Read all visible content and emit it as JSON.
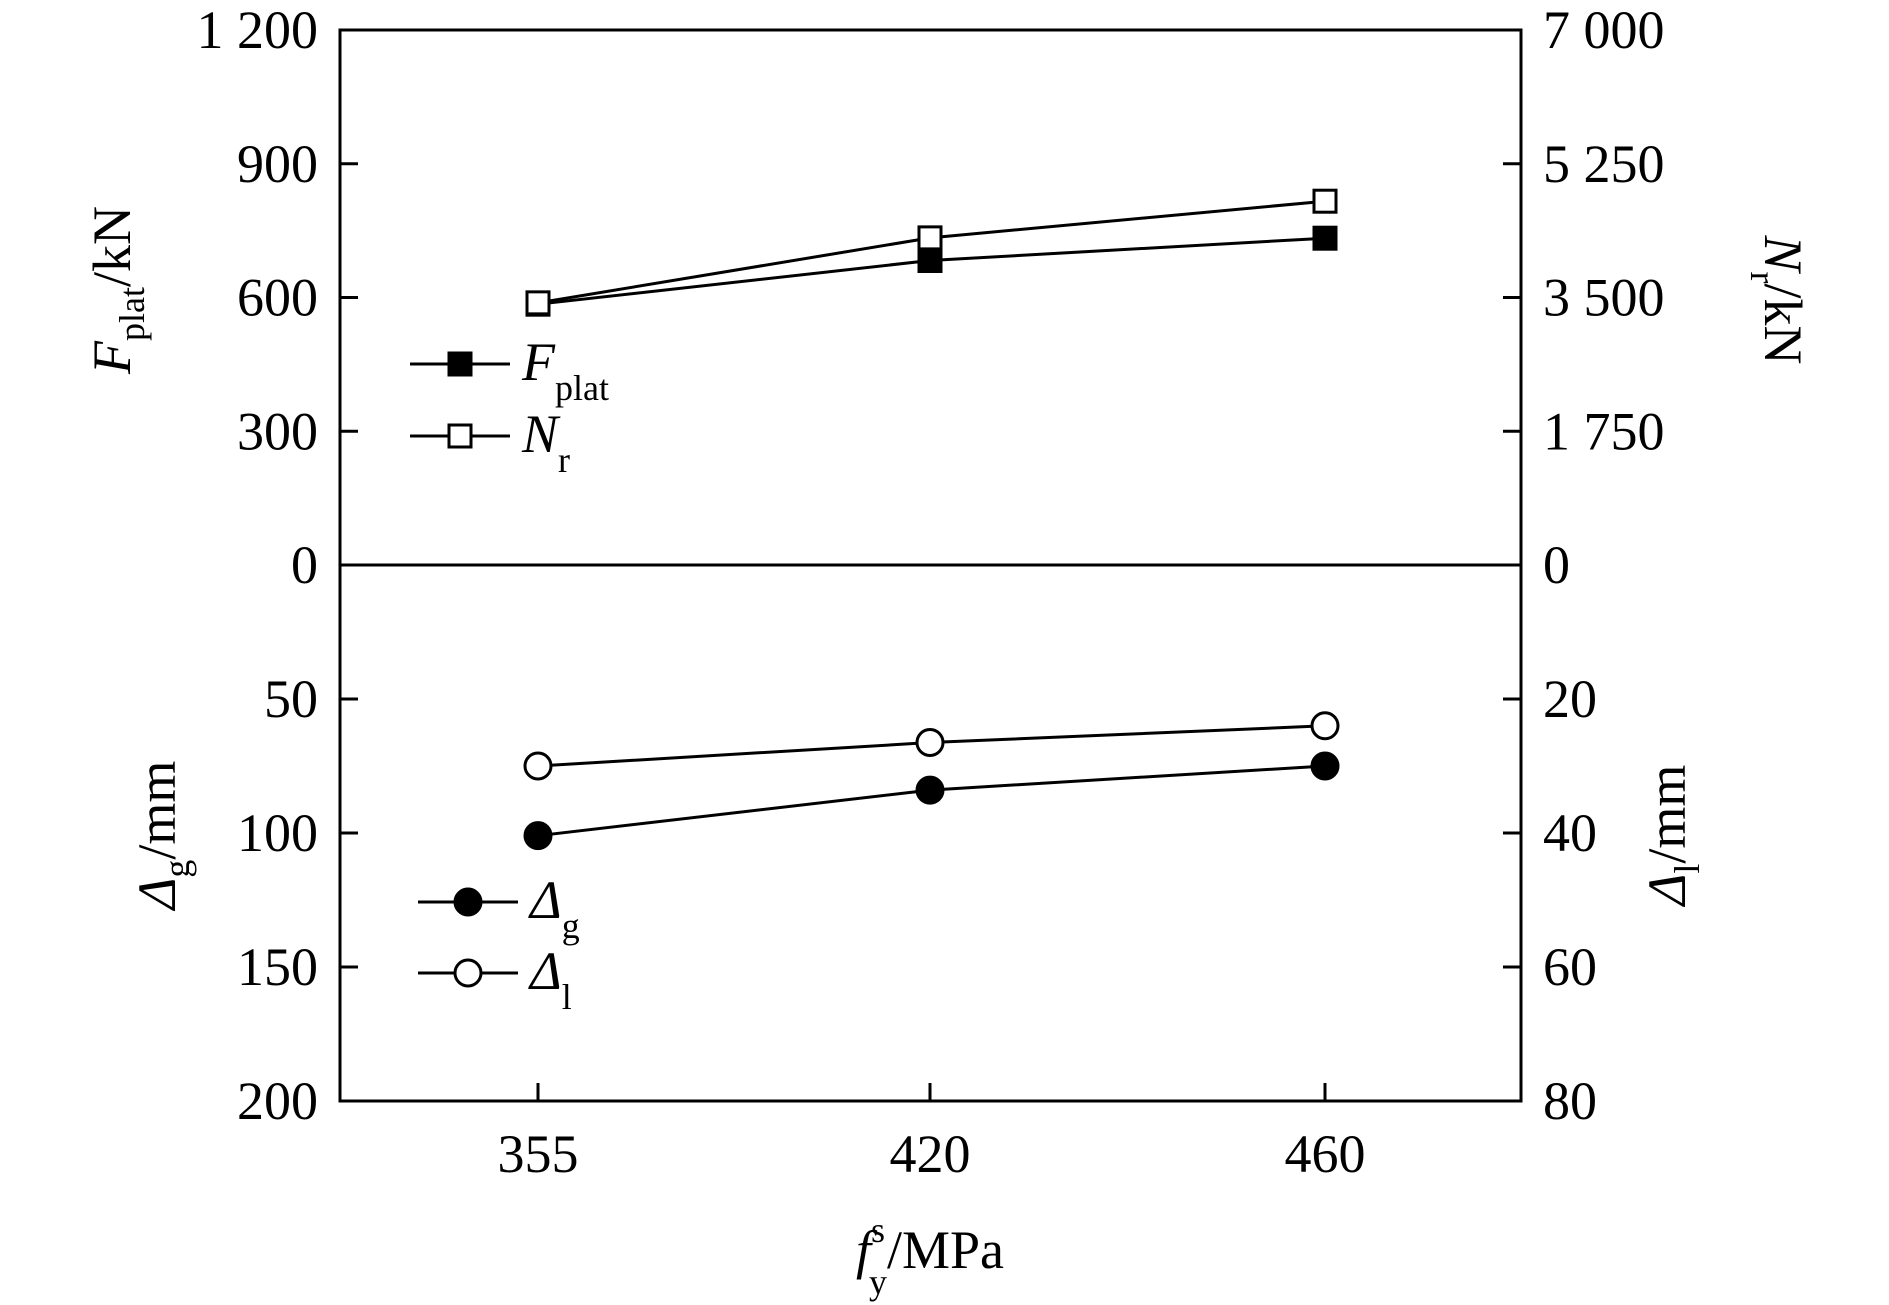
{
  "chart_data": [
    {
      "panel": "top",
      "type": "line",
      "x": [
        355,
        420,
        460
      ],
      "x_positions": "categorical",
      "xtick_labels": [
        "355",
        "420",
        "460"
      ],
      "left_axis": {
        "label_main": "F",
        "label_sub": "plat",
        "label_unit": "/kN",
        "ylim": [
          0,
          1200
        ],
        "ticks": [
          0,
          300,
          600,
          900,
          1200
        ],
        "tick_labels": [
          "0",
          "300",
          "600",
          "900",
          "1 200"
        ]
      },
      "right_axis": {
        "label_main": "N",
        "label_sub": "r",
        "label_unit": "/kN",
        "ylim": [
          0,
          7000
        ],
        "ticks": [
          0,
          1750,
          3500,
          5250,
          7000
        ],
        "tick_labels": [
          "0",
          "1 750",
          "3 500",
          "5 250",
          "7 000"
        ]
      },
      "series": [
        {
          "name_main": "F",
          "name_sub": "plat",
          "axis": "left",
          "marker": "filled-square",
          "values": [
            585,
            683,
            733
          ]
        },
        {
          "name_main": "N",
          "name_sub": "r",
          "axis": "right",
          "marker": "open-square",
          "values": [
            3430,
            4280,
            4760
          ]
        }
      ],
      "legend_position": "left-middle"
    },
    {
      "panel": "bottom",
      "type": "line",
      "x": [
        355,
        420,
        460
      ],
      "x_positions": "categorical",
      "xtick_labels": [
        "355",
        "420",
        "460"
      ],
      "left_axis": {
        "label_main": "Δ",
        "label_sub": "g",
        "label_unit": "/mm",
        "ylim": [
          0,
          200
        ],
        "inverted": true,
        "ticks": [
          50,
          100,
          150,
          200
        ],
        "tick_labels": [
          "50",
          "100",
          "150",
          "200"
        ]
      },
      "right_axis": {
        "label_main": "Δ",
        "label_sub": "l",
        "label_unit": "/mm",
        "ylim": [
          0,
          80
        ],
        "inverted": true,
        "ticks": [
          20,
          40,
          60,
          80
        ],
        "tick_labels": [
          "20",
          "40",
          "60",
          "80"
        ]
      },
      "series": [
        {
          "name_main": "Δ",
          "name_sub": "g",
          "axis": "left",
          "marker": "filled-circle",
          "values": [
            101,
            84,
            75
          ]
        },
        {
          "name_main": "Δ",
          "name_sub": "l",
          "axis": "right",
          "marker": "open-circle",
          "values": [
            30,
            26.5,
            24
          ]
        }
      ],
      "legend_position": "left-bottom"
    }
  ],
  "xaxis": {
    "label_main": "f",
    "label_sup": "s",
    "label_sub": "y",
    "label_unit": "/MPa"
  }
}
